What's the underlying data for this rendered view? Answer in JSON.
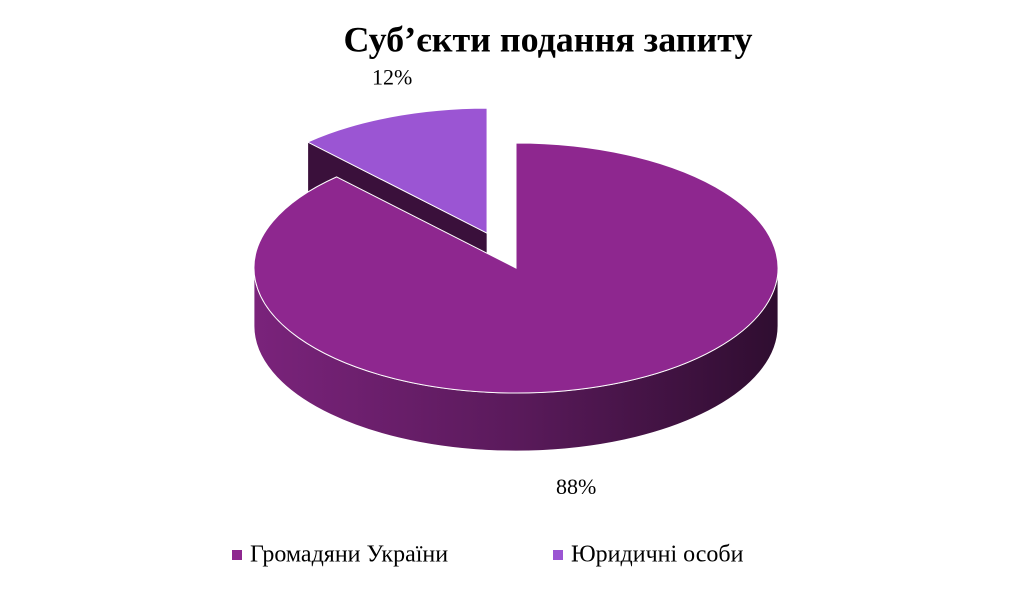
{
  "chart_data": {
    "type": "pie",
    "title": "Суб’єкти подання запиту",
    "categories": [
      "Громадяни України",
      "Юридичні особи"
    ],
    "values": [
      88,
      12
    ],
    "value_labels": [
      "88%",
      "12%"
    ],
    "colors": [
      "#8e278f",
      "#9b55d3"
    ],
    "legend": "bottom"
  }
}
